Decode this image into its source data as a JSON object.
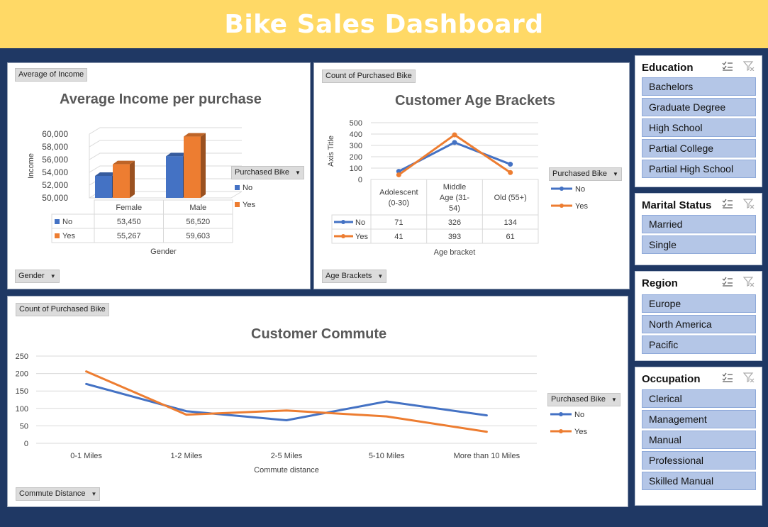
{
  "dashboard": {
    "title": "Bike Sales Dashboard"
  },
  "colors": {
    "no": "#4472c4",
    "yes": "#ed7d31",
    "banner": "#ffd966",
    "background": "#1f3864",
    "slicer_item": "#b4c6e7"
  },
  "charts": {
    "income": {
      "field_button": "Average of Income",
      "axis_button": "Gender",
      "legend_title": "Purchased Bike",
      "title": "Average Income per purchase",
      "ylabel": "Income",
      "xlabel": "Gender",
      "yticks": [
        "60,000",
        "58,000",
        "56,000",
        "54,000",
        "52,000",
        "50,000"
      ]
    },
    "age": {
      "field_button": "Count of Purchased Bike",
      "axis_button": "Age Brackets",
      "legend_title": "Purchased Bike",
      "title": "Customer Age Brackets",
      "ylabel": "Axis Title",
      "xlabel": "Age bracket",
      "yticks": [
        "500",
        "400",
        "300",
        "200",
        "100",
        "0"
      ]
    },
    "commute": {
      "field_button": "Count of Purchased Bike",
      "axis_button": "Commute Distance",
      "legend_title": "Purchased Bike",
      "title": "Customer Commute",
      "xlabel": "Commute distance",
      "yticks": [
        "250",
        "200",
        "150",
        "100",
        "50",
        "0"
      ]
    }
  },
  "chart_data": [
    {
      "type": "bar",
      "title": "Average Income per purchase",
      "categories": [
        "Female",
        "Male"
      ],
      "series": [
        {
          "name": "No",
          "values": [
            53450,
            56520
          ],
          "labels": [
            "53,450",
            "56,520"
          ]
        },
        {
          "name": "Yes",
          "values": [
            55267,
            59603
          ],
          "labels": [
            "55,267",
            "59,603"
          ]
        }
      ],
      "xlabel": "Gender",
      "ylabel": "Income",
      "ylim": [
        50000,
        60000
      ],
      "legend": "right"
    },
    {
      "type": "line",
      "title": "Customer Age Brackets",
      "categories": [
        "Adolescent (0-30)",
        "Middle Age (31-54)",
        "Old (55+)"
      ],
      "category_lines": [
        [
          "Adolescent",
          "(0-30)"
        ],
        [
          "Middle",
          "Age (31-",
          "54)"
        ],
        [
          "Old (55+)"
        ]
      ],
      "series": [
        {
          "name": "No",
          "values": [
            71,
            326,
            134
          ]
        },
        {
          "name": "Yes",
          "values": [
            41,
            393,
            61
          ]
        }
      ],
      "xlabel": "Age bracket",
      "ylabel": "Axis Title",
      "ylim": [
        0,
        500
      ],
      "legend": "right"
    },
    {
      "type": "line",
      "title": "Customer Commute",
      "categories": [
        "0-1 Miles",
        "1-2 Miles",
        "2-5 Miles",
        "5-10 Miles",
        "More than 10 Miles"
      ],
      "series": [
        {
          "name": "No",
          "values": [
            170,
            92,
            66,
            120,
            80
          ]
        },
        {
          "name": "Yes",
          "values": [
            206,
            82,
            94,
            77,
            33
          ]
        }
      ],
      "xlabel": "Commute distance",
      "ylim": [
        0,
        250
      ],
      "legend": "right"
    }
  ],
  "slicers": [
    {
      "title": "Education",
      "items": [
        "Bachelors",
        "Graduate Degree",
        "High School",
        "Partial College",
        "Partial High School"
      ]
    },
    {
      "title": "Marital Status",
      "items": [
        "Married",
        "Single"
      ]
    },
    {
      "title": "Region",
      "items": [
        "Europe",
        "North America",
        "Pacific"
      ]
    },
    {
      "title": "Occupation",
      "items": [
        "Clerical",
        "Management",
        "Manual",
        "Professional",
        "Skilled Manual"
      ]
    }
  ],
  "icons": {
    "multi_select": "multi-select-icon",
    "clear_filter": "clear-filter-icon",
    "dropdown": "dropdown-arrow-icon"
  }
}
